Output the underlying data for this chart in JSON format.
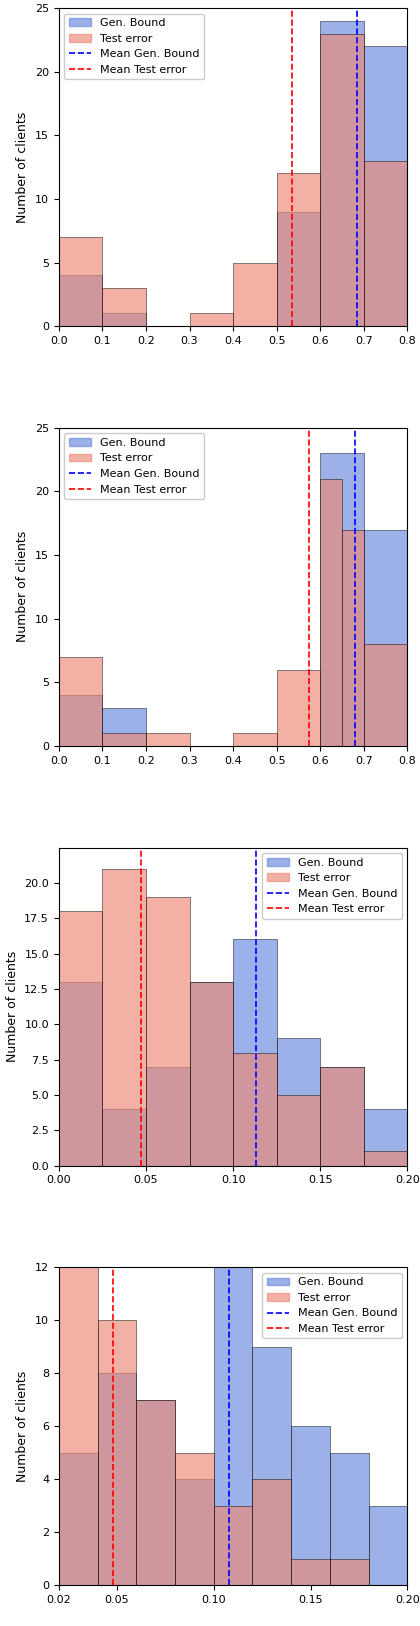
{
  "blue_color": "#6688dd",
  "red_color": "#ee8877",
  "blue_alpha": 0.65,
  "red_alpha": 0.65,
  "subplots": [
    {
      "ylabel": "Number of clients",
      "xlim": [
        0.0,
        0.8
      ],
      "ylim": [
        0,
        25
      ],
      "yticks": [
        0,
        5,
        10,
        15,
        20,
        25
      ],
      "xticks": [
        0.0,
        0.1,
        0.2,
        0.3,
        0.4,
        0.5,
        0.6,
        0.7,
        0.8
      ],
      "xticklabels": [
        "0.0",
        "0.1",
        "0.2",
        "0.3",
        "0.4",
        "0.5",
        "0.6",
        "0.7",
        "0.8"
      ],
      "mean_gen_bound": 0.685,
      "mean_test_error": 0.535,
      "legend_loc": "upper left",
      "gb_bins": [
        0.0,
        0.1,
        0.2,
        0.3,
        0.4,
        0.5,
        0.6,
        0.7,
        0.8
      ],
      "gb_hist": [
        4,
        1,
        0,
        0,
        0,
        9,
        24,
        22
      ],
      "te_bins": [
        0.0,
        0.1,
        0.2,
        0.3,
        0.4,
        0.5,
        0.6,
        0.7,
        0.8
      ],
      "te_hist": [
        7,
        3,
        0,
        1,
        5,
        12,
        23,
        13
      ]
    },
    {
      "ylabel": "Number of clients",
      "xlim": [
        0.0,
        0.8
      ],
      "ylim": [
        0,
        25
      ],
      "yticks": [
        0,
        5,
        10,
        15,
        20,
        25
      ],
      "xticks": [
        0.0,
        0.1,
        0.2,
        0.3,
        0.4,
        0.5,
        0.6,
        0.7,
        0.8
      ],
      "xticklabels": [
        "0.0",
        "0.1",
        "0.2",
        "0.3",
        "0.4",
        "0.5",
        "0.6",
        "0.7",
        "0.8"
      ],
      "mean_gen_bound": 0.68,
      "mean_test_error": 0.575,
      "legend_loc": "upper left",
      "gb_bins": [
        0.0,
        0.1,
        0.2,
        0.3,
        0.4,
        0.5,
        0.6,
        0.7,
        0.8
      ],
      "gb_hist": [
        4,
        3,
        0,
        0,
        0,
        0,
        23,
        17
      ],
      "te_bins": [
        0.0,
        0.1,
        0.2,
        0.3,
        0.4,
        0.5,
        0.6,
        0.65,
        0.7,
        0.8
      ],
      "te_hist": [
        7,
        1,
        1,
        0,
        1,
        6,
        21,
        17,
        8
      ]
    },
    {
      "ylabel": "Number of clients",
      "xlim": [
        0.0,
        0.2
      ],
      "ylim": [
        0.0,
        22.5
      ],
      "yticks": [
        0.0,
        2.5,
        5.0,
        7.5,
        10.0,
        12.5,
        15.0,
        17.5,
        20.0
      ],
      "xticks": [
        0.0,
        0.05,
        0.1,
        0.15,
        0.2
      ],
      "xticklabels": [
        "0.00",
        "0.05",
        "0.10",
        "0.15",
        "0.20"
      ],
      "mean_gen_bound": 0.113,
      "mean_test_error": 0.047,
      "legend_loc": "upper right",
      "gb_bins": [
        0.0,
        0.025,
        0.05,
        0.075,
        0.1,
        0.125,
        0.15,
        0.175,
        0.2
      ],
      "gb_hist": [
        13,
        4,
        7,
        13,
        16,
        9,
        7,
        4
      ],
      "te_bins": [
        0.0,
        0.025,
        0.05,
        0.075,
        0.1,
        0.125,
        0.15,
        0.175,
        0.2
      ],
      "te_hist": [
        18,
        21,
        19,
        13,
        8,
        5,
        7,
        1
      ]
    },
    {
      "ylabel": "Number of clients",
      "xlim": [
        0.02,
        0.2
      ],
      "ylim": [
        0,
        12
      ],
      "yticks": [
        0,
        2,
        4,
        6,
        8,
        10,
        12
      ],
      "xticks": [
        0.02,
        0.05,
        0.1,
        0.15,
        0.2
      ],
      "xticklabels": [
        "0.02",
        "0.05",
        "0.10",
        "0.15",
        "0.20"
      ],
      "mean_gen_bound": 0.108,
      "mean_test_error": 0.048,
      "legend_loc": "upper right",
      "gb_bins": [
        0.02,
        0.04,
        0.06,
        0.08,
        0.1,
        0.12,
        0.14,
        0.16,
        0.18,
        0.2
      ],
      "gb_hist": [
        5,
        8,
        7,
        4,
        12,
        9,
        6,
        5,
        3
      ],
      "te_bins": [
        0.02,
        0.04,
        0.06,
        0.08,
        0.1,
        0.12,
        0.14,
        0.16,
        0.18,
        0.2
      ],
      "te_hist": [
        12,
        10,
        7,
        5,
        3,
        4,
        1,
        1,
        0
      ]
    }
  ]
}
